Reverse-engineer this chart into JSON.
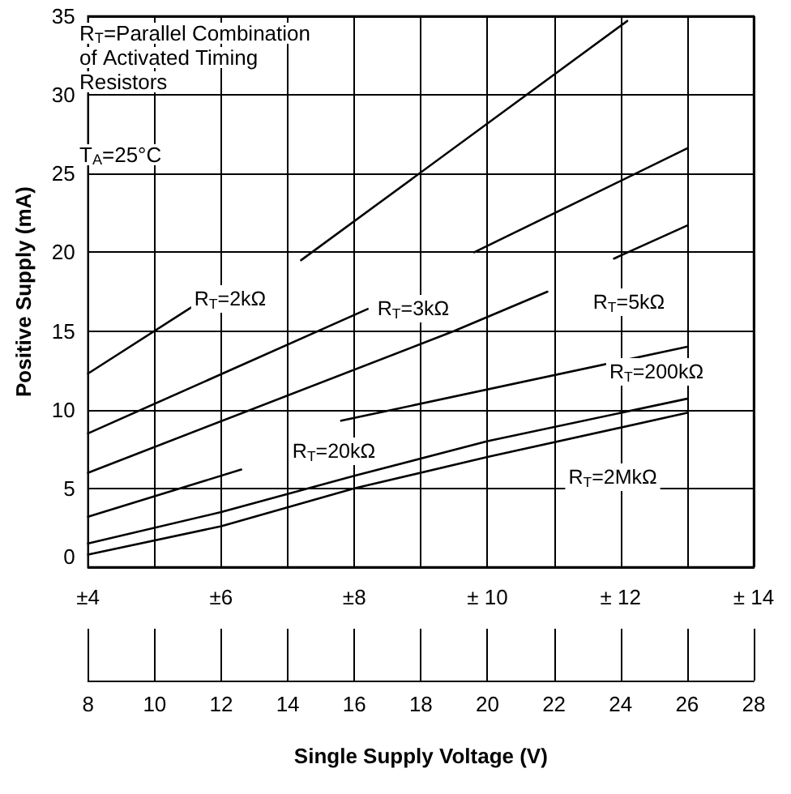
{
  "chart_data": {
    "type": "line",
    "ylabel": "Positive Supply (mA)",
    "x2label": "Single Supply Voltage (V)",
    "xlim": [
      4,
      14
    ],
    "xticks": [
      {
        "value": 4,
        "label": "±4"
      },
      {
        "value": 6,
        "label": "±6"
      },
      {
        "value": 8,
        "label": "±8"
      },
      {
        "value": 10,
        "label": "± 10"
      },
      {
        "value": 12,
        "label": "± 12"
      },
      {
        "value": 14,
        "label": "± 14"
      }
    ],
    "x2lim": [
      8,
      28
    ],
    "x2ticks": [
      8,
      10,
      12,
      14,
      16,
      18,
      20,
      22,
      24,
      26,
      28
    ],
    "ylim": [
      0,
      35
    ],
    "yticks": [
      0,
      5,
      10,
      15,
      20,
      25,
      30,
      35
    ],
    "grid": true,
    "marker": "none",
    "line_style": "solid",
    "series": [
      {
        "color": "#000000",
        "x": [
          4,
          5.55,
          6.4,
          7.2,
          12.1
        ],
        "values": [
          12.3,
          16.5,
          null,
          19.5,
          34.7
        ]
      },
      {
        "color": "#000000",
        "x": [
          4,
          8.2,
          9,
          9.8,
          13
        ],
        "values": [
          8.5,
          16.4,
          null,
          20,
          26.6
        ]
      },
      {
        "color": "#000000",
        "x": [
          4,
          9.5,
          10.9,
          11.4,
          11.9,
          13
        ],
        "values": [
          6,
          15,
          17.5,
          null,
          19.6,
          21.7
        ]
      },
      {
        "color": "#000000",
        "x": [
          4,
          6.3,
          7,
          7.8,
          13
        ],
        "values": [
          3.2,
          6.2,
          null,
          9.3,
          14
        ]
      },
      {
        "color": "#000000",
        "x": [
          4,
          6,
          8,
          10,
          13
        ],
        "values": [
          1.5,
          3.5,
          5.8,
          8,
          10.7
        ]
      },
      {
        "color": "#000000",
        "x": [
          4,
          6,
          8,
          10,
          13
        ],
        "values": [
          0.8,
          2.6,
          5,
          7,
          9.8
        ]
      }
    ],
    "annotations": [
      "R$_{T}$=Parallel Combination of Activated Timing Resistors",
      "T$_{A}$=25°C",
      "R$_{T}$=2kΩ",
      "R$_{T}$=3kΩ",
      "R$_{T}$=5kΩ",
      "R$_{T}$=200kΩ",
      "R$_{T}$=20kΩ",
      "R$_{T}$=2MkΩ"
    ]
  }
}
